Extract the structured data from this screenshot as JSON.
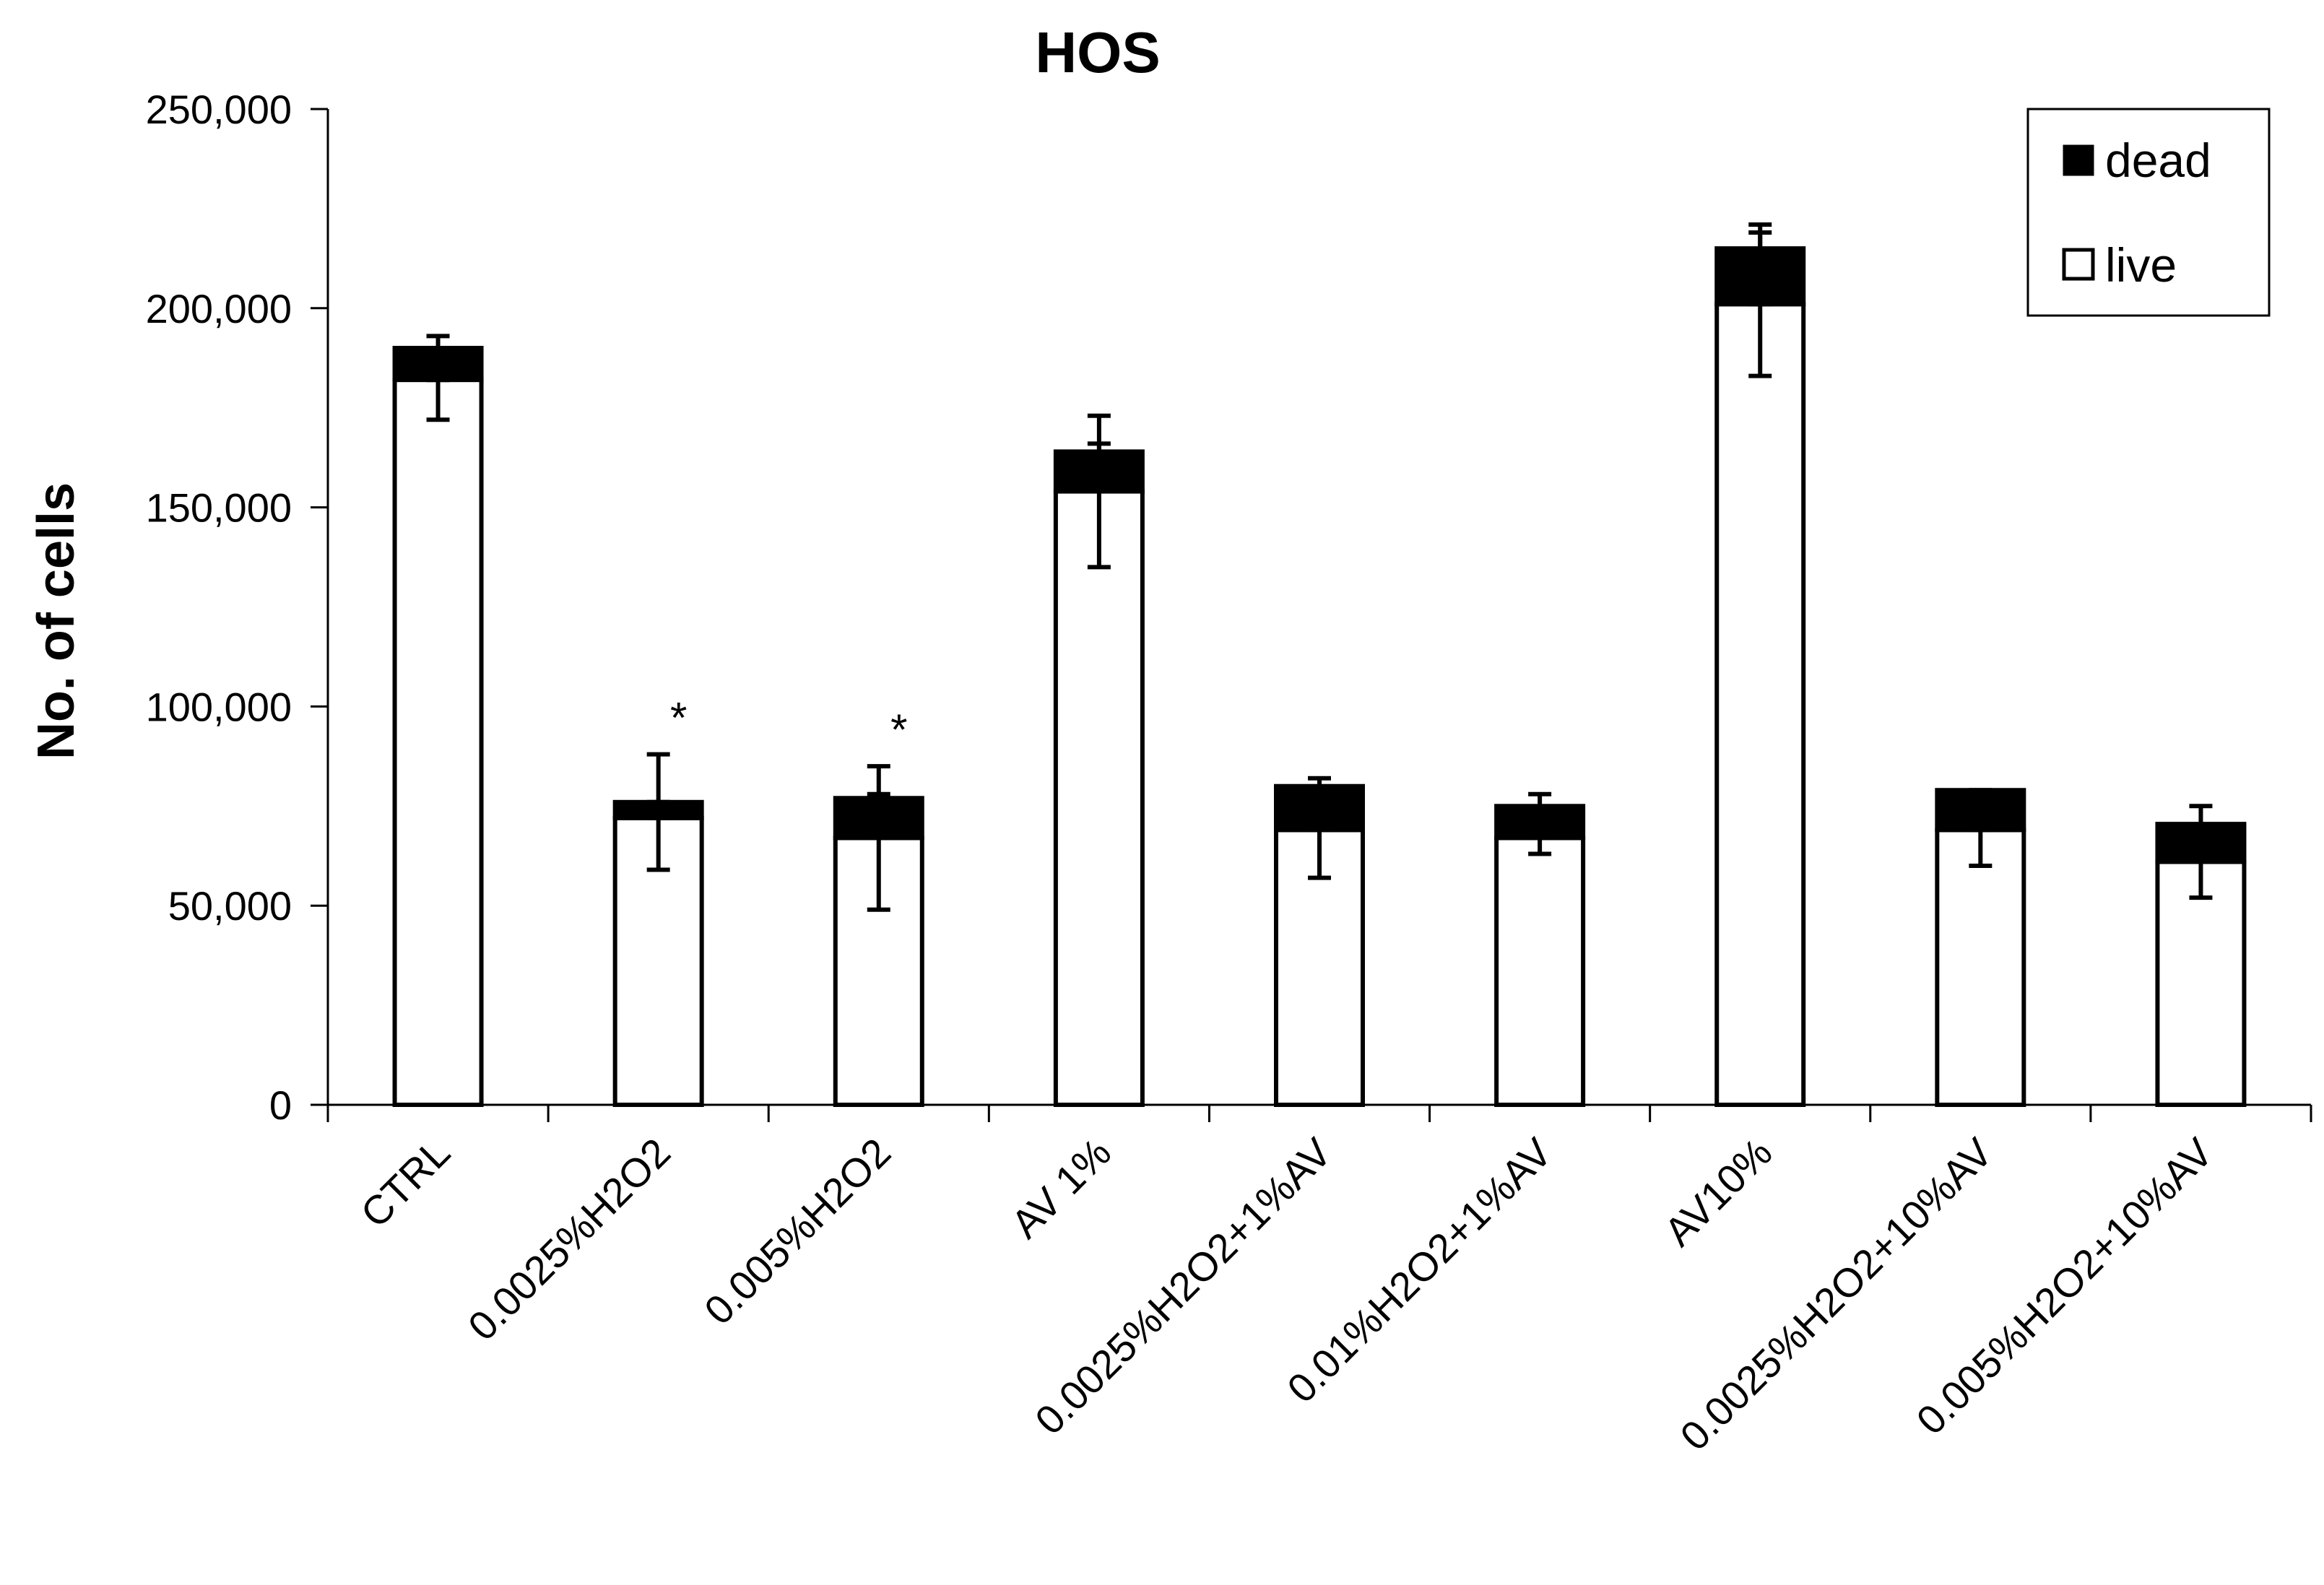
{
  "chart_data": {
    "type": "bar",
    "stacked": true,
    "title": "HOS",
    "xlabel": "",
    "ylabel": "No. of cells",
    "ylim": [
      0,
      250000
    ],
    "yticks": [
      0,
      50000,
      100000,
      150000,
      200000,
      250000
    ],
    "ytick_labels": [
      "0",
      "50,000",
      "100,000",
      "150,000",
      "200,000",
      "250,000"
    ],
    "categories": [
      "CTRL",
      "0.0025%H2O2",
      "0.005%H2O2",
      "AV 1%",
      "0.0025%H2O2+1%AV",
      "0.01%H2O2+1%AV",
      "AV10%",
      "0.0025%H2O2+10%AV",
      "0.005%H2O2+10%AV"
    ],
    "series": [
      {
        "name": "live",
        "color": "#ffffff",
        "values": [
          182000,
          72000,
          67000,
          154000,
          69000,
          67000,
          201000,
          69000,
          61000
        ]
      },
      {
        "name": "dead",
        "color": "#000000",
        "values": [
          8000,
          4000,
          10000,
          10000,
          11000,
          8000,
          14000,
          10000,
          9500
        ]
      }
    ],
    "error_bars": {
      "live": [
        [
          172000,
          182000
        ],
        [
          59000,
          76000
        ],
        [
          49000,
          78000
        ],
        [
          135000,
          166000
        ],
        [
          57000,
          73000
        ],
        [
          63000,
          73000
        ],
        [
          183000,
          219000
        ],
        [
          60000,
          74000
        ],
        [
          52000,
          68000
        ]
      ],
      "dead": [
        [
          182000,
          193000
        ],
        [
          72000,
          88000
        ],
        [
          67000,
          85000
        ],
        [
          154000,
          173000
        ],
        [
          69000,
          82000
        ],
        [
          67000,
          78000
        ],
        [
          201000,
          221000
        ],
        [
          69000,
          79000
        ],
        [
          61000,
          75000
        ]
      ]
    },
    "significance": [
      "",
      "*",
      "*",
      "",
      "",
      "",
      "",
      "",
      ""
    ],
    "legend": {
      "position": "top-right",
      "entries": [
        "dead",
        "live"
      ]
    }
  }
}
